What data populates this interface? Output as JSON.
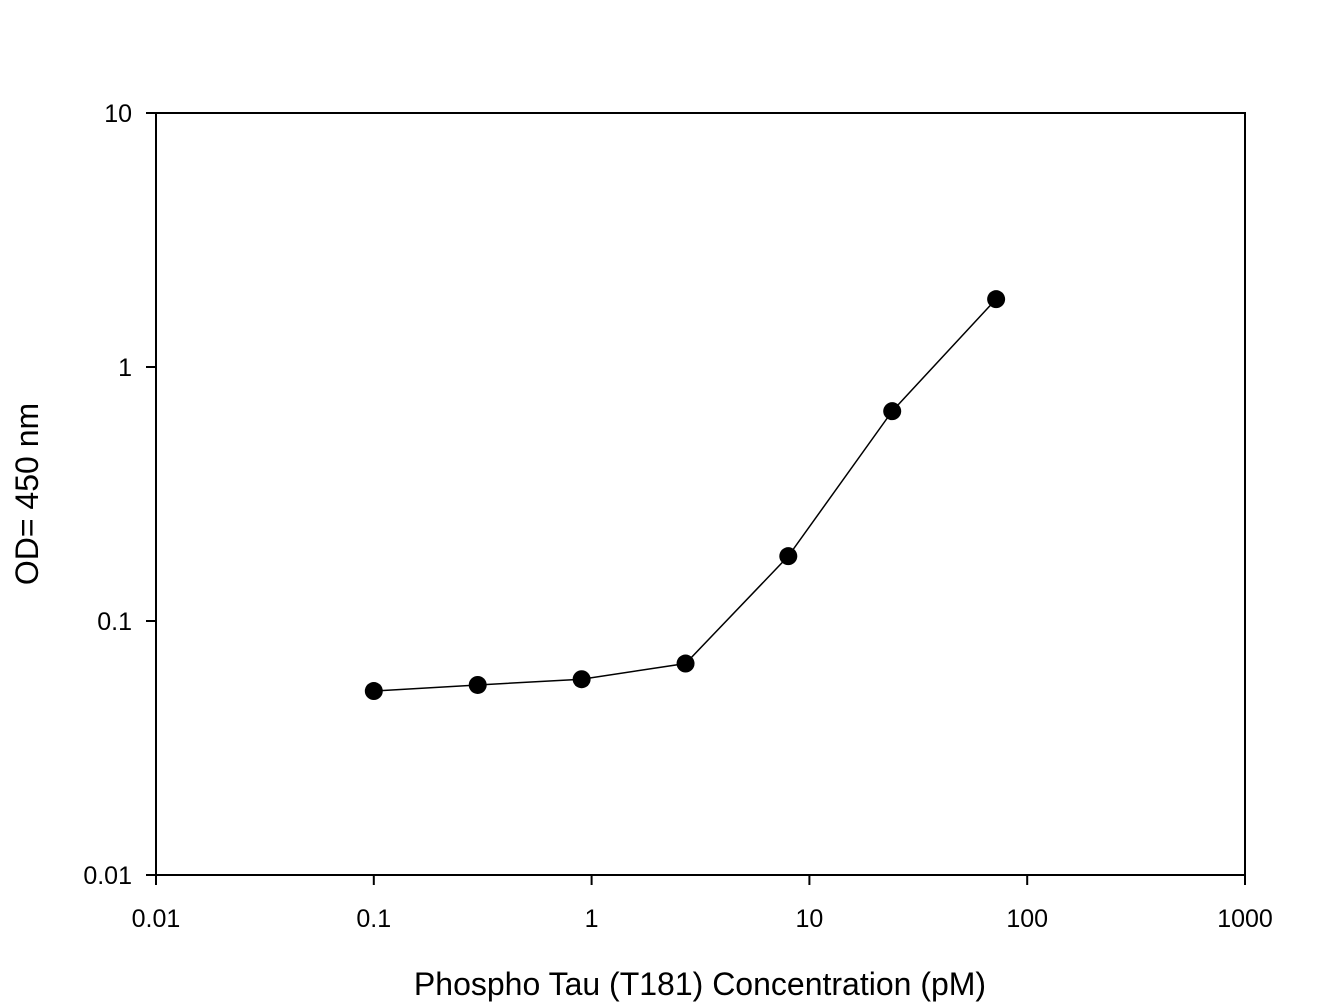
{
  "chart_data": {
    "type": "line",
    "title": "",
    "xlabel": "Phospho Tau (T181) Concentration (pM)",
    "ylabel": "OD= 450 nm",
    "x_scale": "log",
    "y_scale": "log",
    "xlim": [
      0.01,
      1000
    ],
    "ylim": [
      0.01,
      10
    ],
    "x_ticks": [
      0.01,
      0.1,
      1,
      10,
      100,
      1000
    ],
    "x_tick_labels": [
      "0.01",
      "0.1",
      "1",
      "10",
      "100",
      "1000"
    ],
    "y_ticks": [
      0.01,
      0.1,
      1,
      10
    ],
    "y_tick_labels": [
      "0.01",
      "0.1",
      "1",
      "10"
    ],
    "grid": false,
    "legend": "none",
    "series": [
      {
        "x": [
          0.1,
          0.3,
          0.9,
          2.7,
          8.0,
          24.0,
          72.0
        ],
        "y": [
          0.053,
          0.056,
          0.059,
          0.068,
          0.18,
          0.67,
          1.85
        ],
        "color": "#000000",
        "marker": "filled-circle"
      }
    ]
  }
}
